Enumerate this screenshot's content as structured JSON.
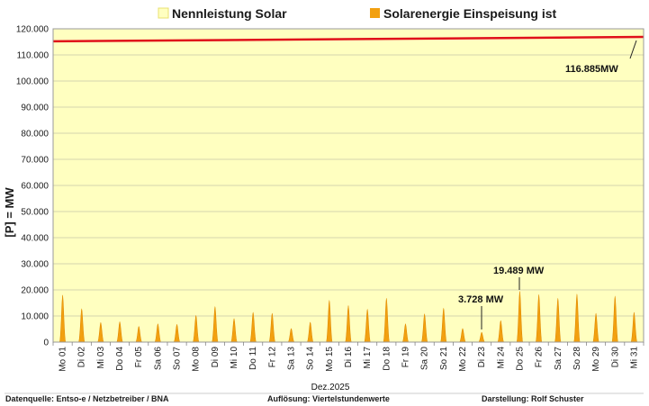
{
  "chart_data": {
    "type": "area",
    "legend": [
      {
        "name": "Nennleistung Solar",
        "color": "#ffffc0",
        "border": "#e8e070"
      },
      {
        "name": "Solarenergie Einspeisung ist",
        "color": "#f2a010"
      }
    ],
    "ylabel": "[P]  =  MW",
    "xlabel": "Dez.2025",
    "ylim": [
      0,
      120000
    ],
    "yticks": [
      "0",
      "10.000",
      "20.000",
      "30.000",
      "40.000",
      "50.000",
      "60.000",
      "70.000",
      "80.000",
      "90.000",
      "100.000",
      "110.000",
      "120.000"
    ],
    "categories": [
      "Mo 01",
      "Di 02",
      "Mi 03",
      "Do 04",
      "Fr 05",
      "Sa 06",
      "So 07",
      "Mo 08",
      "Di 09",
      "Mi 10",
      "Do 11",
      "Fr 12",
      "Sa 13",
      "So 14",
      "Mo 15",
      "Di 16",
      "Mi 17",
      "Do 18",
      "Fr 19",
      "Sa 20",
      "So 21",
      "Mo 22",
      "Di 23",
      "Mi 24",
      "Do 25",
      "Fr 26",
      "Sa 27",
      "So 28",
      "Mo 29",
      "Di 30",
      "Mi 31"
    ],
    "series": [
      {
        "name": "Nennleistung Solar",
        "start": 115200,
        "end": 116885
      },
      {
        "name": "Solarenergie Einspeisung ist",
        "daily_peaks": [
          18000,
          12800,
          7500,
          7800,
          6000,
          7000,
          6800,
          10200,
          13600,
          9000,
          11400,
          11000,
          5200,
          7600,
          16000,
          14000,
          12600,
          16800,
          7000,
          10800,
          13000,
          5200,
          3728,
          8200,
          19489,
          18200,
          16800,
          18400,
          11000,
          17600,
          11400
        ]
      }
    ],
    "annotations": {
      "nennleistung_end": "116.885MW",
      "max_feed": "19.489 MW",
      "min_feed": "3.728 MW"
    },
    "footer": {
      "source": "Datenquelle:  Entso-e  / Netzbetreiber / BNA",
      "resolution": "Auflösung: Viertelstundenwerte",
      "author": "Darstellung:  Rolf Schuster"
    }
  }
}
